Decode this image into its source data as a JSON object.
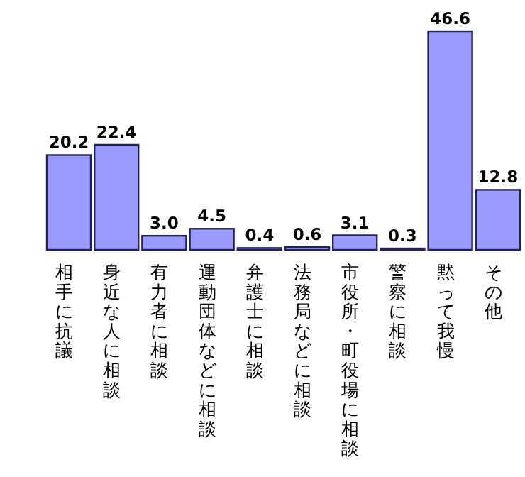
{
  "chart_data": {
    "type": "bar",
    "categories": [
      "相手に抗議",
      "身近な人に相談",
      "有力者に相談",
      "運動団体などに相談",
      "弁護士に相談",
      "法務局などに相談",
      "市役所・町役場に相談",
      "警察に相談",
      "黙って我慢",
      "その他"
    ],
    "values": [
      20.2,
      22.4,
      3.0,
      4.5,
      0.4,
      0.6,
      3.1,
      0.3,
      46.6,
      12.8
    ],
    "value_labels": [
      "20.2",
      "22.4",
      "3.0",
      "4.5",
      "0.4",
      "0.6",
      "3.1",
      "0.3",
      "46.6",
      "12.8"
    ],
    "color": "#9999ff"
  }
}
